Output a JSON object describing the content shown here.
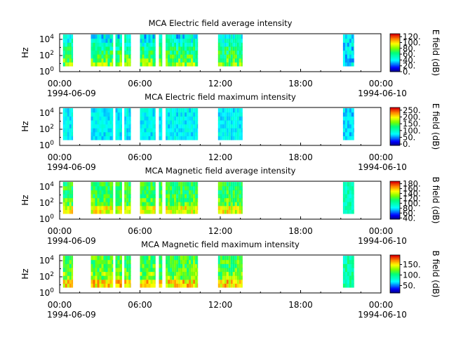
{
  "chart_data": [
    {
      "type": "heatmap",
      "title": "MCA  Electric field average intensity",
      "ylabel": "Hz",
      "y_ticks": [
        {
          "base": "10",
          "exp": "0"
        },
        {
          "base": "10",
          "exp": "2"
        },
        {
          "base": "10",
          "exp": "4"
        }
      ],
      "x_ticks": [
        "00:00",
        "06:00",
        "12:00",
        "18:00",
        "00:00"
      ],
      "date_labels": [
        "1994-06-09",
        "1994-06-10"
      ],
      "colorbar": {
        "label": "E field (dB)",
        "ticks": [
          "120.",
          "100.",
          "80.",
          "60.",
          "40.",
          "20.",
          "0."
        ],
        "range": [
          0,
          130
        ],
        "units": "dB"
      },
      "value_range": [
        20,
        100
      ]
    },
    {
      "type": "heatmap",
      "title": "MCA  Electric field maximum intensity",
      "ylabel": "Hz",
      "y_ticks": [
        {
          "base": "10",
          "exp": "0"
        },
        {
          "base": "10",
          "exp": "2"
        },
        {
          "base": "10",
          "exp": "4"
        }
      ],
      "x_ticks": [
        "00:00",
        "06:00",
        "12:00",
        "18:00",
        "00:00"
      ],
      "date_labels": [
        "1994-06-09",
        "1994-06-10"
      ],
      "colorbar": {
        "label": "E field (dB)",
        "ticks": [
          "250.",
          "200.",
          "150.",
          "100.",
          "50.",
          "0."
        ],
        "range": [
          -10,
          270
        ],
        "units": "dB"
      },
      "value_range": [
        40,
        150
      ]
    },
    {
      "type": "heatmap",
      "title": "MCA  Magnetic field average intensity",
      "ylabel": "Hz",
      "y_ticks": [
        {
          "base": "10",
          "exp": "0"
        },
        {
          "base": "10",
          "exp": "2"
        },
        {
          "base": "10",
          "exp": "4"
        }
      ],
      "x_ticks": [
        "00:00",
        "06:00",
        "12:00",
        "18:00",
        "00:00"
      ],
      "date_labels": [
        "1994-06-09",
        "1994-06-10"
      ],
      "colorbar": {
        "label": "B field (dB)",
        "ticks": [
          "180.",
          "160.",
          "140.",
          "120.",
          "100.",
          "80.",
          "60.",
          "40."
        ],
        "range": [
          35,
          190
        ],
        "units": "dB"
      },
      "value_range": [
        80,
        160
      ]
    },
    {
      "type": "heatmap",
      "title": "MCA  Magnetic field maximum intensity",
      "ylabel": "Hz",
      "y_ticks": [
        {
          "base": "10",
          "exp": "0"
        },
        {
          "base": "10",
          "exp": "2"
        },
        {
          "base": "10",
          "exp": "4"
        }
      ],
      "x_ticks": [
        "00:00",
        "06:00",
        "12:00",
        "18:00",
        "00:00"
      ],
      "date_labels": [
        "1994-06-09",
        "1994-06-10"
      ],
      "colorbar": {
        "label": "B field (dB)",
        "ticks": [
          "150.",
          "100.",
          "50."
        ],
        "range": [
          15,
          195
        ],
        "units": "dB"
      },
      "value_range": [
        70,
        170
      ]
    }
  ],
  "data_segments": [
    {
      "start": "00:15",
      "end": "01:00"
    },
    {
      "start": "02:20",
      "end": "04:00"
    },
    {
      "start": "04:10",
      "end": "04:40"
    },
    {
      "start": "04:50",
      "end": "05:20"
    },
    {
      "start": "06:00",
      "end": "07:10"
    },
    {
      "start": "07:25",
      "end": "07:40"
    },
    {
      "start": "07:55",
      "end": "10:20"
    },
    {
      "start": "11:50",
      "end": "13:40"
    },
    {
      "start": "21:10",
      "end": "22:00"
    }
  ],
  "x_range": [
    "00:00",
    "24:00"
  ],
  "freq_range_log10": [
    0,
    4.7
  ]
}
